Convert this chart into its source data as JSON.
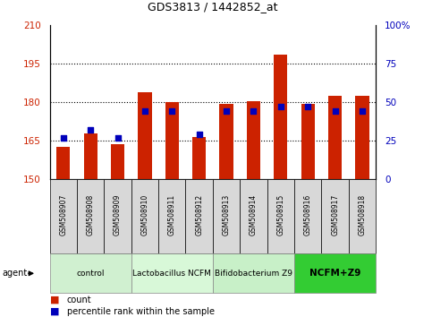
{
  "title": "GDS3813 / 1442852_at",
  "samples": [
    "GSM508907",
    "GSM508908",
    "GSM508909",
    "GSM508910",
    "GSM508911",
    "GSM508912",
    "GSM508913",
    "GSM508914",
    "GSM508915",
    "GSM508916",
    "GSM508917",
    "GSM508918"
  ],
  "count_values": [
    162.5,
    168.0,
    163.5,
    184.0,
    180.0,
    166.5,
    179.5,
    180.5,
    198.5,
    179.5,
    182.5,
    182.5
  ],
  "percentile_values": [
    27,
    32,
    27,
    44,
    44,
    29,
    44,
    44,
    47,
    47,
    44,
    44
  ],
  "ylim_left": [
    150,
    210
  ],
  "ylim_right": [
    0,
    100
  ],
  "yticks_left": [
    150,
    165,
    180,
    195,
    210
  ],
  "yticks_right": [
    0,
    25,
    50,
    75,
    100
  ],
  "right_tick_labels": [
    "0",
    "25",
    "50",
    "75",
    "100%"
  ],
  "grid_dotted_at": [
    165,
    180,
    195
  ],
  "groups": [
    {
      "label": "control",
      "start": 0,
      "end": 3,
      "color": "#d0f0d0"
    },
    {
      "label": "Lactobacillus NCFM",
      "start": 3,
      "end": 6,
      "color": "#d8f8d8"
    },
    {
      "label": "Bifidobacterium Z9",
      "start": 6,
      "end": 9,
      "color": "#c8f0c8"
    },
    {
      "label": "NCFM+Z9",
      "start": 9,
      "end": 12,
      "color": "#33cc33"
    }
  ],
  "bar_color": "#cc2200",
  "blue_color": "#0000bb",
  "bar_width": 0.5,
  "label_box_color": "#d8d8d8",
  "left_tick_color": "#cc2200",
  "right_tick_color": "#0000bb",
  "title_fontsize": 9,
  "tick_fontsize": 7.5,
  "sample_fontsize": 5.5,
  "group_fontsize": 6.5,
  "legend_fontsize": 7
}
